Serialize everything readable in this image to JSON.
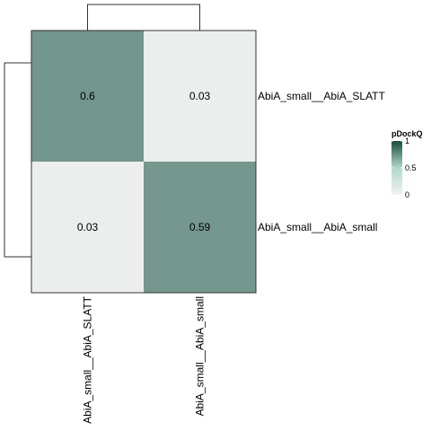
{
  "chart_data": {
    "type": "heatmap",
    "rows": [
      "AbiA_small__AbiA_SLATT",
      "AbiA_small__AbiA_small"
    ],
    "columns": [
      "AbiA_small__AbiA_SLATT",
      "AbiA_small__AbiA_small"
    ],
    "values": [
      [
        0.6,
        0.03
      ],
      [
        0.03,
        0.59
      ]
    ],
    "value_labels": [
      [
        "0.6",
        "0.03"
      ],
      [
        "0.03",
        "0.59"
      ]
    ],
    "legend": {
      "title": "pDockQ",
      "ticks": [
        "0",
        "0.5",
        "1"
      ],
      "range": [
        0,
        1
      ],
      "placement": "right"
    },
    "colors": {
      "low": "#f2f2f2",
      "mid": "#b0d9cc",
      "high": "#1b4a3e",
      "cell_border": "#ffffff",
      "frame": "#333333",
      "dendrogram": "#333333"
    },
    "dendrograms": {
      "rows": true,
      "columns": true
    }
  }
}
